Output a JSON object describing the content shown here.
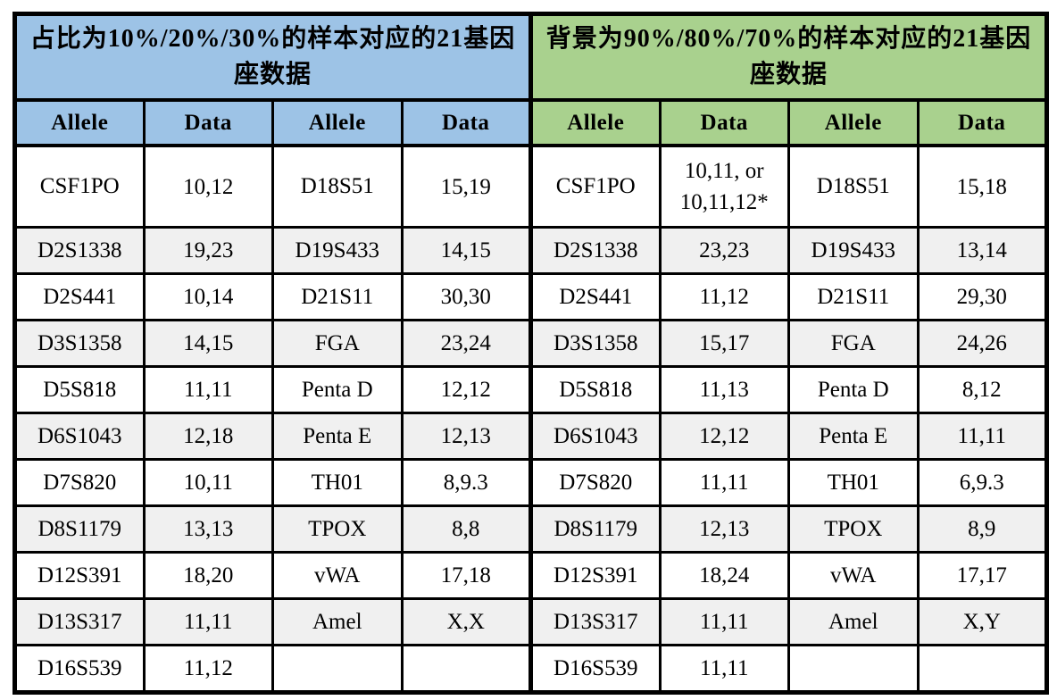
{
  "table": {
    "left": {
      "title": "占比为10%/20%/30%的样本对应的21基因座数据",
      "columns": [
        "Allele",
        "Data",
        "Allele",
        "Data"
      ],
      "rows": [
        [
          "CSF1PO",
          "10,12",
          "D18S51",
          "15,19"
        ],
        [
          "D2S1338",
          "19,23",
          "D19S433",
          "14,15"
        ],
        [
          "D2S441",
          "10,14",
          "D21S11",
          "30,30"
        ],
        [
          "D3S1358",
          "14,15",
          "FGA",
          "23,24"
        ],
        [
          "D5S818",
          "11,11",
          "Penta D",
          "12,12"
        ],
        [
          "D6S1043",
          "12,18",
          "Penta E",
          "12,13"
        ],
        [
          "D7S820",
          "10,11",
          "TH01",
          "8,9.3"
        ],
        [
          "D8S1179",
          "13,13",
          "TPOX",
          "8,8"
        ],
        [
          "D12S391",
          "18,20",
          "vWA",
          "17,18"
        ],
        [
          "D13S317",
          "11,11",
          "Amel",
          "X,X"
        ],
        [
          "D16S539",
          "11,12",
          "",
          ""
        ]
      ]
    },
    "right": {
      "title": "背景为90%/80%/70%的样本对应的21基因座数据",
      "columns": [
        "Allele",
        "Data",
        "Allele",
        "Data"
      ],
      "rows": [
        [
          "CSF1PO",
          "10,11, or\n10,11,12*",
          "D18S51",
          "15,18"
        ],
        [
          "D2S1338",
          "23,23",
          "D19S433",
          "13,14"
        ],
        [
          "D2S441",
          "11,12",
          "D21S11",
          "29,30"
        ],
        [
          "D3S1358",
          "15,17",
          "FGA",
          "24,26"
        ],
        [
          "D5S818",
          "11,13",
          "Penta D",
          "8,12"
        ],
        [
          "D6S1043",
          "12,12",
          "Penta E",
          "11,11"
        ],
        [
          "D7S820",
          "11,11",
          "TH01",
          "6,9.3"
        ],
        [
          "D8S1179",
          "12,13",
          "TPOX",
          "8,9"
        ],
        [
          "D12S391",
          "18,24",
          "vWA",
          "17,17"
        ],
        [
          "D13S317",
          "11,11",
          "Amel",
          "X,Y"
        ],
        [
          "D16S539",
          "11,11",
          "",
          ""
        ]
      ]
    }
  },
  "colors": {
    "left_header": "#9DC3E6",
    "right_header": "#A9D18E",
    "stripe": "#F0F0F0",
    "border": "#000000"
  }
}
